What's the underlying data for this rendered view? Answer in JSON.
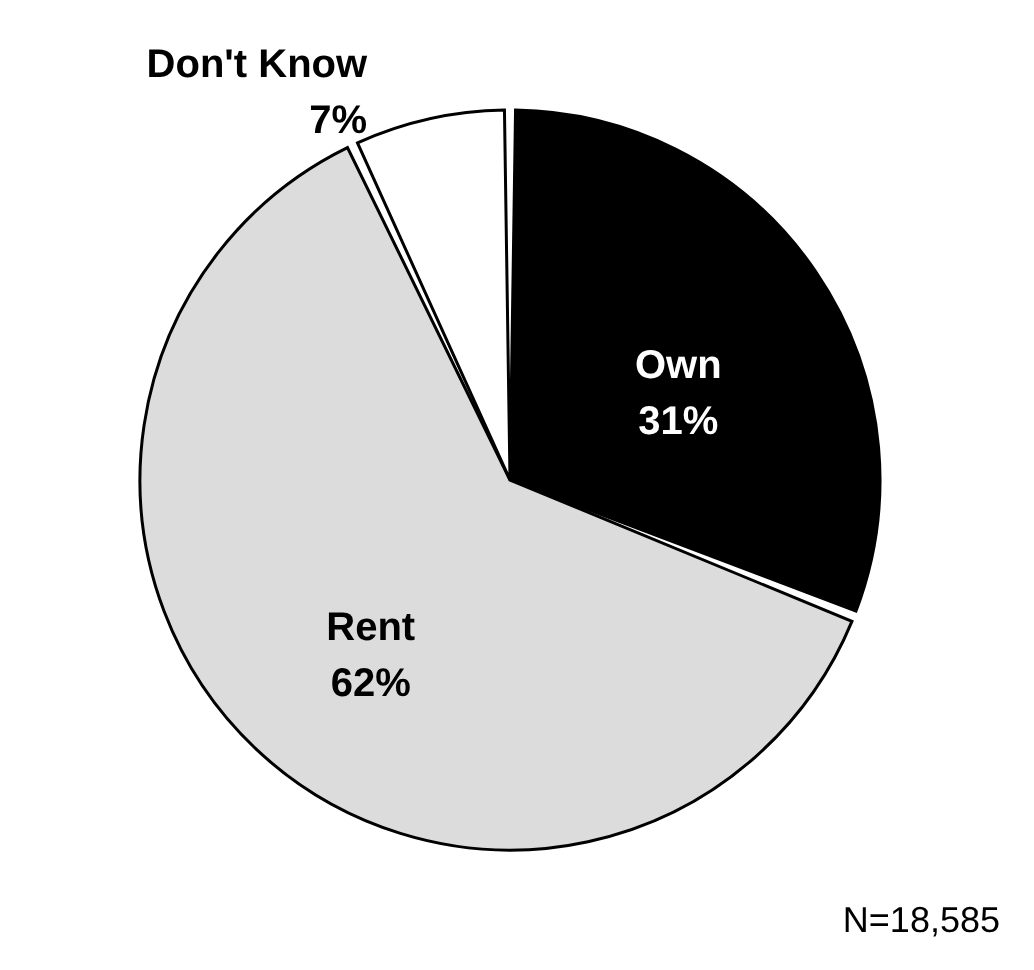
{
  "chart_data": {
    "type": "pie",
    "categories": [
      "Own",
      "Rent",
      "Don't Know"
    ],
    "values": [
      31,
      62,
      7
    ],
    "value_labels": [
      "31%",
      "62%",
      "7%"
    ],
    "colors": [
      "#000000",
      "#dcdcdc",
      "#ffffff"
    ],
    "legend": false,
    "annotations": [
      "N=18,585"
    ]
  }
}
